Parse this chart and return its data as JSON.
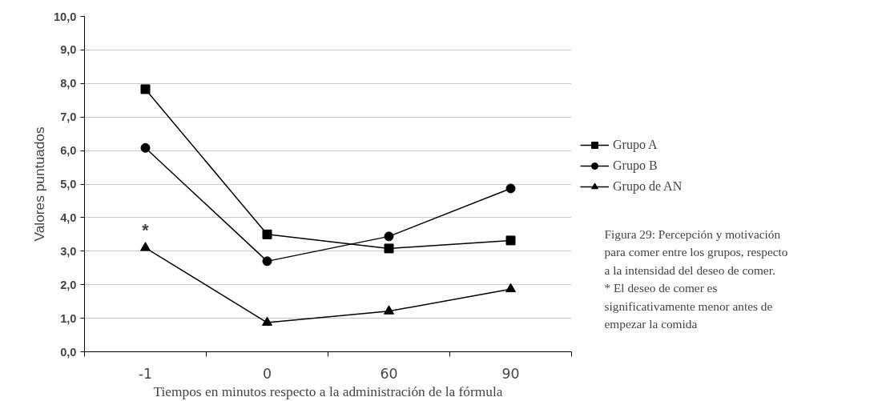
{
  "chart_data": {
    "type": "line",
    "xlabel": "Tiempos en minutos respecto a la administración de la fórmula",
    "ylabel": "Valores puntuados",
    "categories": [
      "-1",
      "0",
      "60",
      "90"
    ],
    "series": [
      {
        "name": "Grupo A",
        "color": "#000000",
        "marker": "square",
        "values": [
          7.83,
          3.5,
          3.08,
          3.32
        ]
      },
      {
        "name": "Grupo B",
        "color": "#000000",
        "marker": "circle",
        "values": [
          6.08,
          2.7,
          3.44,
          4.87
        ]
      },
      {
        "name": "Grupo de AN",
        "color": "#000000",
        "marker": "triangle",
        "values": [
          3.1,
          0.87,
          1.21,
          1.87
        ]
      }
    ],
    "ylim": [
      0,
      10
    ],
    "yticks": [
      {
        "value": 0,
        "label": "0,0"
      },
      {
        "value": 1,
        "label": "1,0"
      },
      {
        "value": 2,
        "label": "2,0"
      },
      {
        "value": 3,
        "label": "3,0"
      },
      {
        "value": 4,
        "label": "4,0"
      },
      {
        "value": 5,
        "label": "5,0"
      },
      {
        "value": 6,
        "label": "6,0"
      },
      {
        "value": 7,
        "label": "7,0"
      },
      {
        "value": 8,
        "label": "8,0"
      },
      {
        "value": 9,
        "label": "9,0"
      },
      {
        "value": 10,
        "label": "10,0"
      }
    ],
    "grid": "y",
    "legend": "right",
    "line_style": "solid",
    "annotations": [
      {
        "text": "*",
        "x": "-1",
        "y": 3.1
      },
      "Figura 29: Percepción y motivación para comer entre los grupos, respecto a la intensidad del deseo de comer.",
      "* El deseo de comer es significativamente menor antes de empezar la comida"
    ]
  }
}
